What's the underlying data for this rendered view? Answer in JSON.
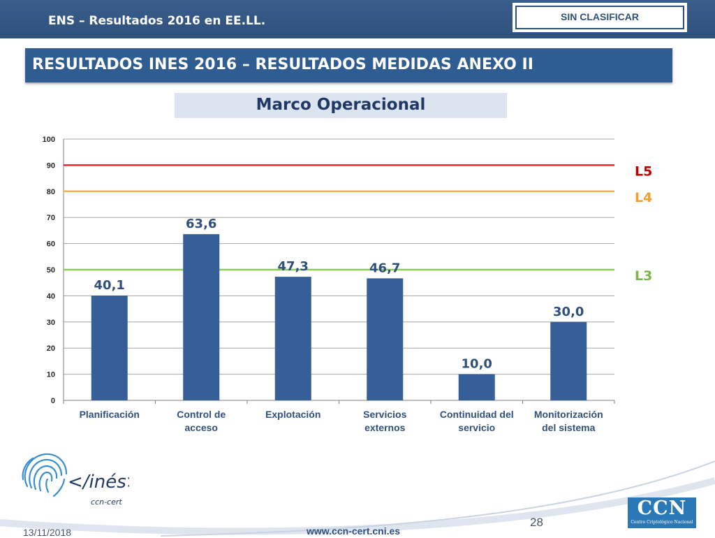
{
  "header": {
    "title": "ENS – Resultados 2016 en EE.LL.",
    "classification": "SIN CLASIFICAR"
  },
  "section": {
    "title": "RESULTADOS INES 2016 – RESULTADOS MEDIDAS ANEXO II"
  },
  "chart_data": {
    "type": "bar",
    "title": "Marco Operacional",
    "categories": [
      [
        "Planificación"
      ],
      [
        "Control de",
        "acceso"
      ],
      [
        "Explotación"
      ],
      [
        "Servicios",
        "externos"
      ],
      [
        "Continuidad del",
        "servicio"
      ],
      [
        "Monitorización",
        "del sistema"
      ]
    ],
    "values": [
      40.1,
      63.6,
      47.3,
      46.7,
      10.0,
      30.0
    ],
    "value_labels": [
      "40,1",
      "63,6",
      "47,3",
      "46,7",
      "10,0",
      "30,0"
    ],
    "ylim": [
      0,
      100
    ],
    "yticks": [
      "0",
      "10",
      "20",
      "30",
      "40",
      "50",
      "60",
      "70",
      "80",
      "90",
      "100"
    ],
    "grid": true,
    "bar_color": "#365f97",
    "label_color": "#2f507d",
    "thresholds": [
      {
        "label": "L5",
        "value": 90,
        "color": "#e8252a",
        "label_color": "#c00000"
      },
      {
        "label": "L4",
        "value": 80,
        "color": "#f8b24a",
        "label_color": "#f0a030"
      },
      {
        "label": "L3",
        "value": 50,
        "color": "#8ec95a",
        "label_color": "#7ab648"
      }
    ]
  },
  "logos": {
    "ines": {
      "text": "</inés>",
      "subtext": "ccn-cert"
    },
    "ccn": {
      "letters": "CCN",
      "subtitle": "Centro Criptológico Nacional"
    }
  },
  "footer": {
    "date": "13/11/2018",
    "url": "www.ccn-cert.cni.es",
    "page": "28"
  }
}
